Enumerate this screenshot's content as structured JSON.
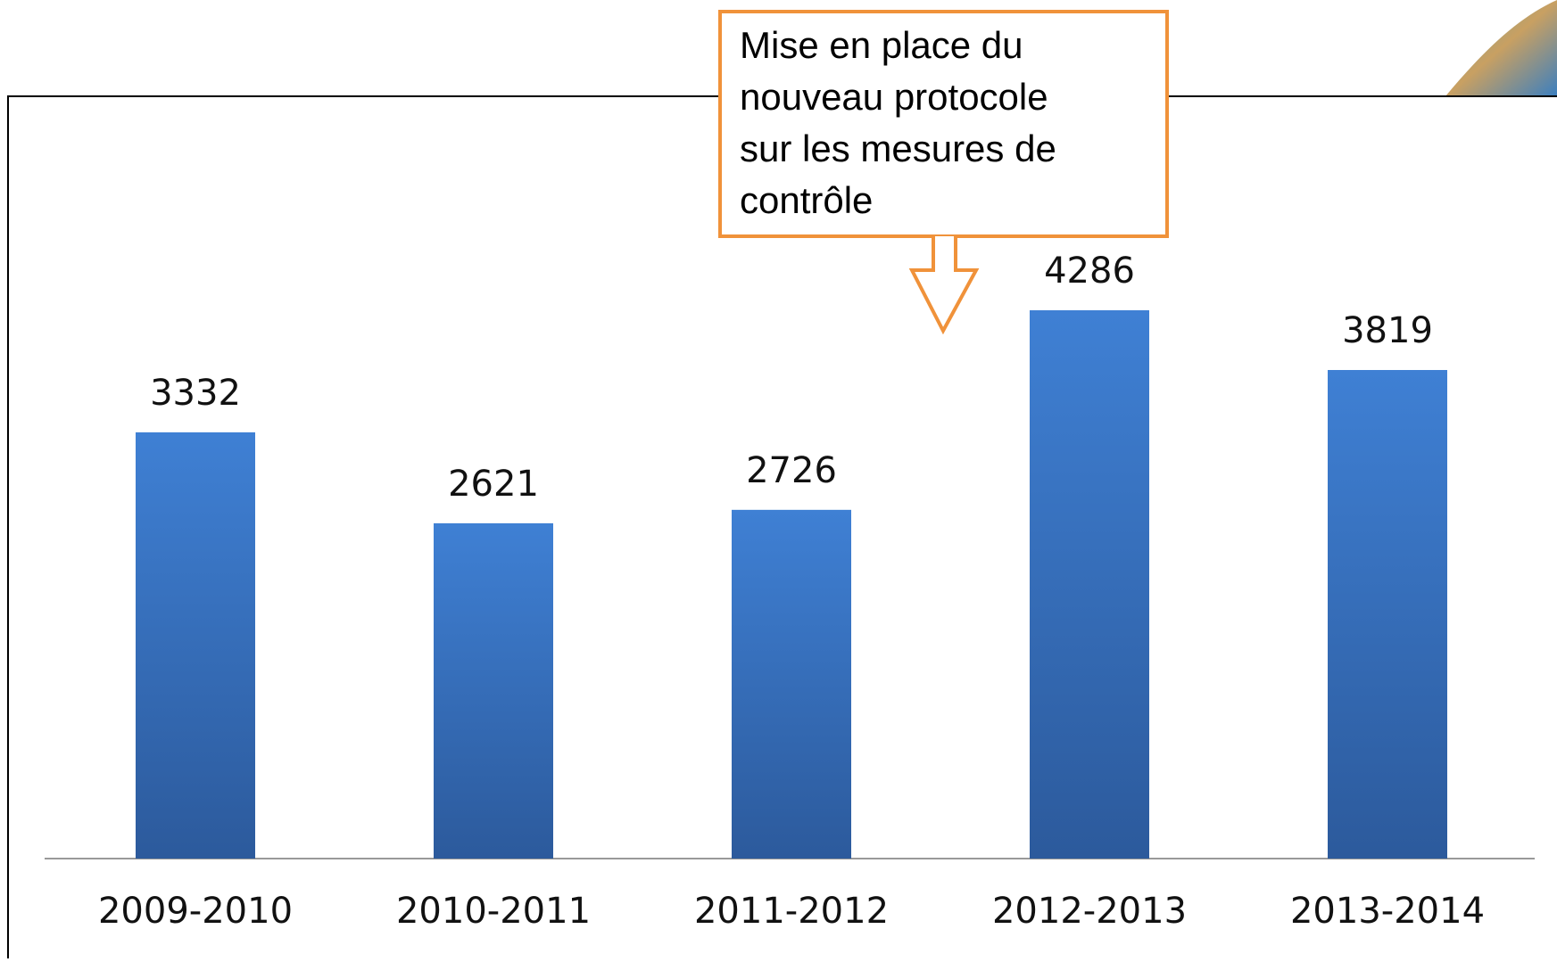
{
  "chart_data": {
    "type": "bar",
    "categories": [
      "2009-2010",
      "2010-2011",
      "2011-2012",
      "2012-2013",
      "2013-2014"
    ],
    "values": [
      3332,
      2621,
      2726,
      4286,
      3819
    ],
    "color": "#3f80d4",
    "annotation": [
      "Mise en place du",
      "nouveau protocole",
      "sur les mesures de",
      "contrôle"
    ]
  }
}
